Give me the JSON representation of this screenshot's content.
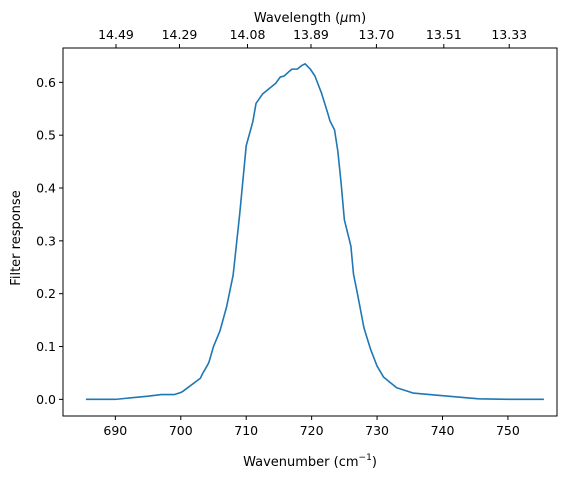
{
  "chart_data": {
    "type": "line",
    "title": "",
    "xlabel": "Wavenumber (cm",
    "xlabel_sup": "−1",
    "xlabel_close": ")",
    "ylabel": "Filter response",
    "top_xlabel": "Wavelength (",
    "top_xlabel_mu": "μ",
    "top_xlabel_unit": "m)",
    "xlim": [
      682,
      757.5
    ],
    "ylim": [
      -0.0315,
      0.665
    ],
    "xticks": [
      690,
      700,
      710,
      720,
      730,
      740,
      750
    ],
    "yticks": [
      0.0,
      0.1,
      0.2,
      0.3,
      0.4,
      0.5,
      0.6
    ],
    "ytick_labels": [
      "0.0",
      "0.1",
      "0.2",
      "0.3",
      "0.4",
      "0.5",
      "0.6"
    ],
    "top_ticks": [
      {
        "wavenumber": 690.1,
        "label": "14.49"
      },
      {
        "wavenumber": 699.8,
        "label": "14.29"
      },
      {
        "wavenumber": 710.2,
        "label": "14.08"
      },
      {
        "wavenumber": 719.9,
        "label": "13.89"
      },
      {
        "wavenumber": 729.9,
        "label": "13.70"
      },
      {
        "wavenumber": 740.2,
        "label": "13.51"
      },
      {
        "wavenumber": 750.2,
        "label": "13.33"
      }
    ],
    "grid": false,
    "line_color": "#1f77b4",
    "series": [
      {
        "x": [
          685.5,
          690,
          695,
          697,
          699,
          700,
          700.3,
          703,
          703.3,
          704,
          704.3,
          705,
          706,
          707,
          708,
          709,
          710,
          711,
          711.5,
          712.5,
          713.5,
          714.5,
          715.2,
          715.8,
          716.5,
          717,
          717.8,
          718.5,
          719,
          719.8,
          720.5,
          721.5,
          722.5,
          722.8,
          723.5,
          724,
          724.5,
          725,
          726,
          726.4,
          727,
          728,
          729,
          730,
          731,
          732,
          733,
          735.5,
          740,
          745.5,
          750,
          755.5
        ],
        "y": [
          0.0,
          0.0,
          0.006,
          0.009,
          0.009,
          0.013,
          0.015,
          0.04,
          0.048,
          0.063,
          0.07,
          0.1,
          0.13,
          0.175,
          0.235,
          0.35,
          0.48,
          0.525,
          0.56,
          0.578,
          0.588,
          0.598,
          0.61,
          0.612,
          0.62,
          0.625,
          0.625,
          0.632,
          0.635,
          0.625,
          0.612,
          0.58,
          0.54,
          0.527,
          0.51,
          0.47,
          0.41,
          0.34,
          0.29,
          0.237,
          0.2,
          0.135,
          0.095,
          0.063,
          0.042,
          0.032,
          0.022,
          0.012,
          0.007,
          0.001,
          0.0,
          0.0
        ]
      }
    ]
  }
}
